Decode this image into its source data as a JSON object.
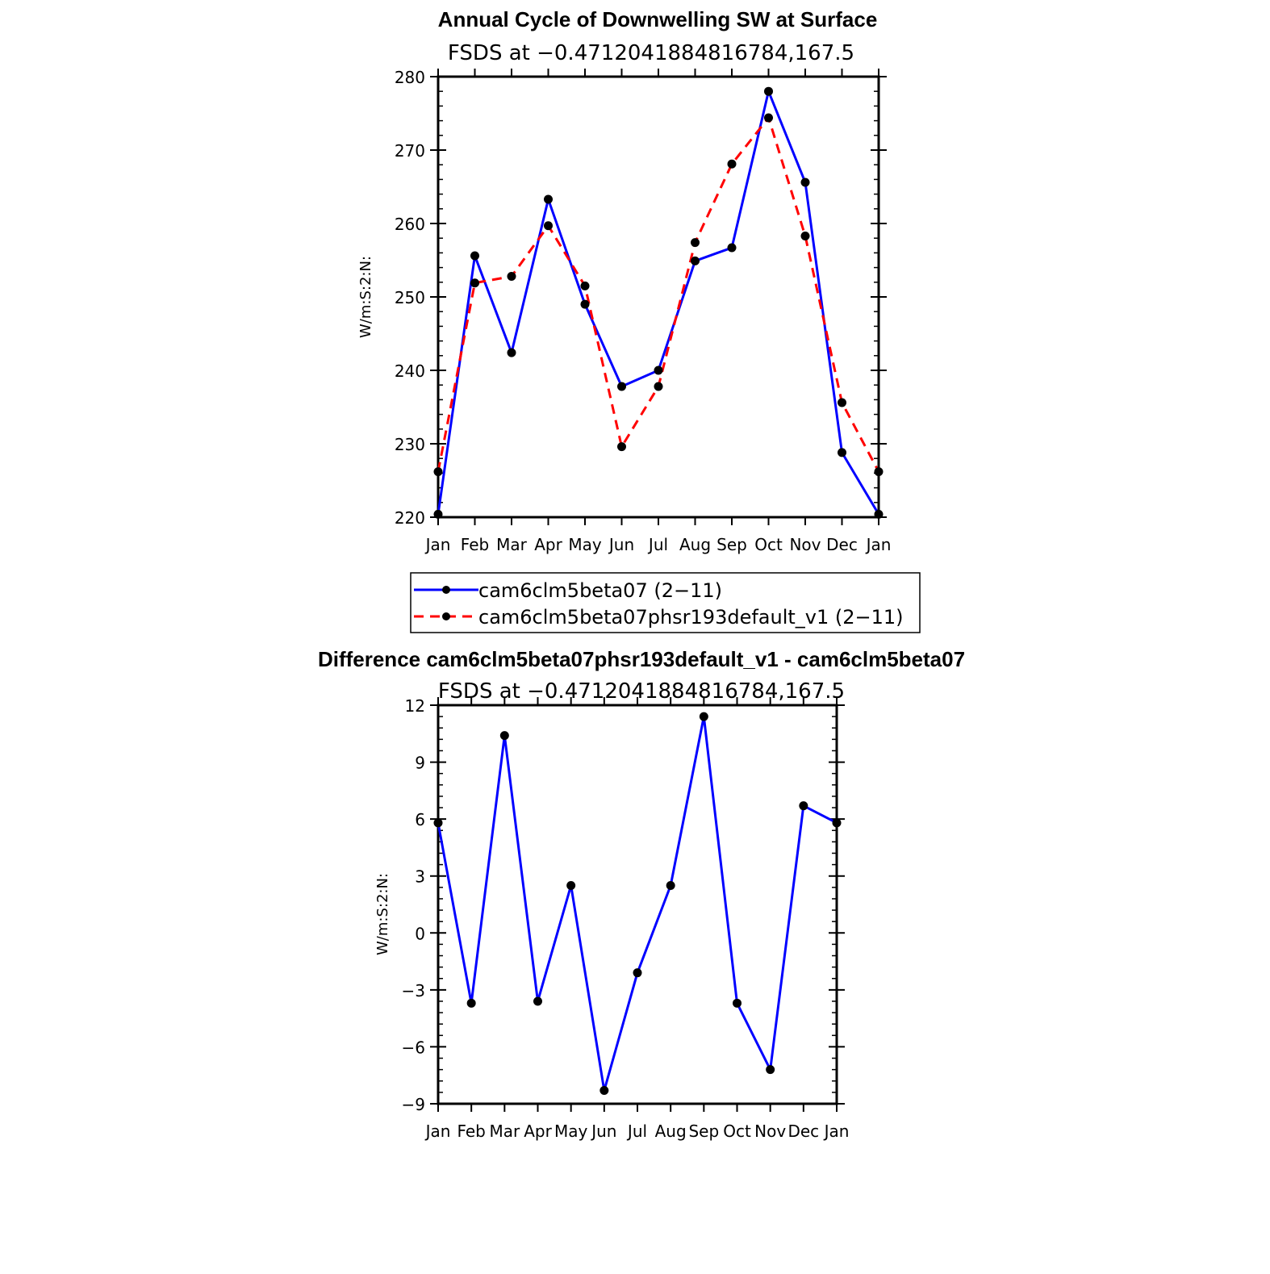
{
  "chart_data": [
    {
      "type": "line",
      "title": "Annual Cycle of Downwelling SW at Surface",
      "subtitle": "FSDS at −0.4712041884816784,167.5",
      "xlabel": "",
      "ylabel": "W/m:S:2:N:",
      "categories": [
        "Jan",
        "Feb",
        "Mar",
        "Apr",
        "May",
        "Jun",
        "Jul",
        "Aug",
        "Sep",
        "Oct",
        "Nov",
        "Dec",
        "Jan"
      ],
      "ylim": [
        220,
        280
      ],
      "yticks": [
        220,
        230,
        240,
        250,
        260,
        270,
        280
      ],
      "ytick_labels": [
        "220",
        "230",
        "240",
        "250",
        "260",
        "270",
        "280"
      ],
      "series": [
        {
          "name": "cam6clm5beta07 (2−11)",
          "color": "#0000ff",
          "dash": "solid",
          "values": [
            220.4,
            255.6,
            242.4,
            263.3,
            249.0,
            237.8,
            240.0,
            254.9,
            256.7,
            278.0,
            265.6,
            228.8,
            220.4
          ]
        },
        {
          "name": "cam6clm5beta07phsr193default_v1 (2−11)",
          "color": "#ff0000",
          "dash": "dashed",
          "values": [
            226.2,
            251.9,
            252.8,
            259.7,
            251.5,
            229.6,
            237.8,
            257.4,
            268.1,
            274.4,
            258.3,
            235.6,
            226.2
          ]
        }
      ],
      "legend": "below"
    },
    {
      "type": "line",
      "title": "Difference cam6clm5beta07phsr193default_v1 - cam6clm5beta07",
      "subtitle": "FSDS at −0.4712041884816784,167.5",
      "xlabel": "",
      "ylabel": "W/m:S:2:N:",
      "categories": [
        "Jan",
        "Feb",
        "Mar",
        "Apr",
        "May",
        "Jun",
        "Jul",
        "Aug",
        "Sep",
        "Oct",
        "Nov",
        "Dec",
        "Jan"
      ],
      "ylim": [
        -9,
        12
      ],
      "yticks": [
        -9,
        -6,
        -3,
        0,
        3,
        6,
        9,
        12
      ],
      "ytick_labels": [
        "−9",
        "−6",
        "−3",
        "0",
        "3",
        "6",
        "9",
        "12"
      ],
      "series": [
        {
          "color": "#0000ff",
          "dash": "solid",
          "values": [
            5.8,
            -3.7,
            10.4,
            -3.6,
            2.5,
            -8.3,
            -2.1,
            2.5,
            11.4,
            -3.7,
            -7.2,
            6.7,
            5.8
          ]
        }
      ]
    }
  ]
}
